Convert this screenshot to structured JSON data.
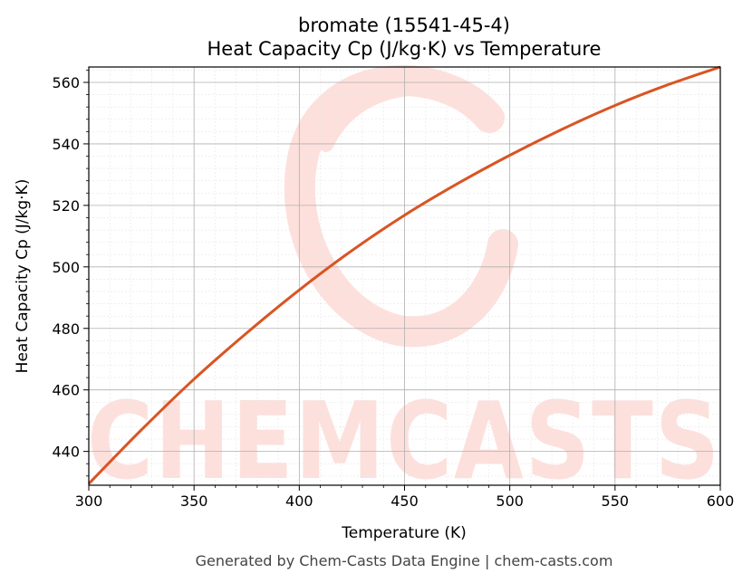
{
  "chart_data": {
    "type": "line",
    "title": "bromate (15541-45-4)",
    "subtitle": "Heat Capacity Cp (J/kg·K) vs Temperature",
    "xlabel": "Temperature (K)",
    "ylabel": "Heat Capacity Cp (J/kg·K)",
    "xlim": [
      300,
      600
    ],
    "ylim": [
      429,
      565
    ],
    "xticks": [
      300,
      350,
      400,
      450,
      500,
      550,
      600
    ],
    "yticks": [
      440,
      460,
      480,
      500,
      520,
      540,
      560
    ],
    "grid": true,
    "line_color": "#d95423",
    "series": [
      {
        "x": [
          300,
          325,
          350,
          375,
          400,
          425,
          450,
          475,
          500,
          525,
          550,
          575,
          600
        ],
        "values": [
          429.5,
          447.0,
          463.5,
          478.5,
          492.5,
          505.3,
          516.8,
          527.0,
          536.3,
          544.8,
          552.5,
          559.2,
          565.0
        ]
      }
    ]
  },
  "footer": "Generated by Chem-Casts Data Engine | chem-casts.com",
  "watermark": {
    "text": "CHEMCASTS",
    "color": "#fde0dc"
  }
}
